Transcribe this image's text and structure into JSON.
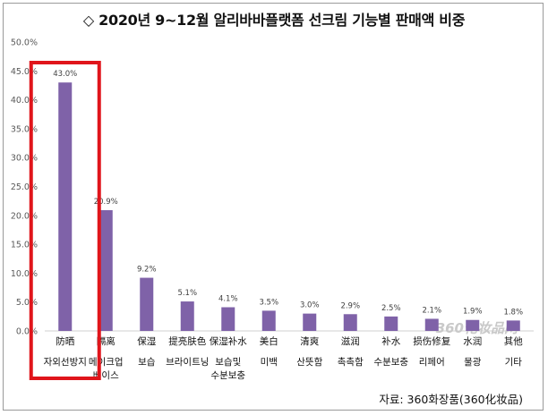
{
  "title": "◇ 2020년 9~12월 알리바바플랫폼 선크림 기능별 판매액 비중",
  "source": "자료: 360화장품(360化妆品)",
  "watermark": "360化妆品网",
  "chart_data": {
    "type": "bar",
    "categories": [
      {
        "cn": "防晒",
        "kr": [
          "자외선방지"
        ]
      },
      {
        "cn": "隔离",
        "kr": [
          "메이크업",
          "베이스"
        ]
      },
      {
        "cn": "保湿",
        "kr": [
          "보습"
        ]
      },
      {
        "cn": "提亮肤色",
        "kr": [
          "브라이트닝"
        ]
      },
      {
        "cn": "保湿补水",
        "kr": [
          "보습및",
          "수분보충"
        ]
      },
      {
        "cn": "美白",
        "kr": [
          "미백"
        ]
      },
      {
        "cn": "清爽",
        "kr": [
          "산뜻함"
        ]
      },
      {
        "cn": "滋润",
        "kr": [
          "촉촉함"
        ]
      },
      {
        "cn": "补水",
        "kr": [
          "수분보충"
        ]
      },
      {
        "cn": "损伤修复",
        "kr": [
          "리페어"
        ]
      },
      {
        "cn": "水润",
        "kr": [
          "물광"
        ]
      },
      {
        "cn": "其他",
        "kr": [
          "기타"
        ]
      }
    ],
    "values": [
      43.0,
      20.9,
      9.2,
      5.1,
      4.1,
      3.5,
      3.0,
      2.9,
      2.5,
      2.1,
      1.9,
      1.8
    ],
    "data_labels": [
      "43.0%",
      "20.9%",
      "9.2%",
      "5.1%",
      "4.1%",
      "3.5%",
      "3.0%",
      "2.9%",
      "2.5%",
      "2.1%",
      "1.9%",
      "1.8%"
    ],
    "yticks": [
      "0.0%",
      "5.0%",
      "10.0%",
      "15.0%",
      "20.0%",
      "25.0%",
      "30.0%",
      "35.0%",
      "40.0%",
      "45.0%",
      "50.0%"
    ],
    "ylim": [
      0,
      50
    ],
    "grid": false,
    "bar_color": "#7f62a8",
    "highlight_color": "#e0151b",
    "highlight_index": 0
  }
}
